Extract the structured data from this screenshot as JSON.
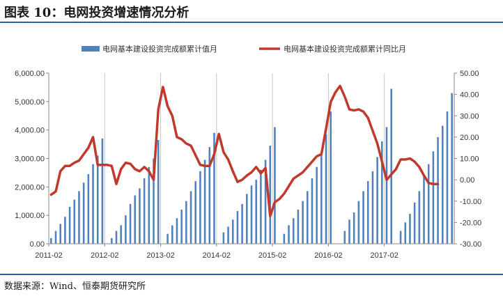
{
  "figure_title": "图表 10：电网投资增速情况分析",
  "source": "数据来源：Wind、恒泰期货研究所",
  "colors": {
    "bar": "#4f81bd",
    "line": "#c0392b",
    "rule": "#2b5fae",
    "grid": "#c8c8c8",
    "axis": "#8a8a8a",
    "text": "#333333"
  },
  "chart_data": {
    "type": "bar",
    "title": "",
    "x_tick_labels": [
      "2011-02",
      "2012-02",
      "2013-02",
      "2014-02",
      "2015-02",
      "2016-02",
      "2017-02"
    ],
    "x_tick_indices": [
      0,
      12,
      24,
      36,
      48,
      60,
      72
    ],
    "left_axis": {
      "min": 0,
      "max": 6000,
      "step": 1000,
      "tick_labels": [
        "0.00",
        "1,000.00",
        "2,000.00",
        "3,000.00",
        "4,000.00",
        "5,000.00",
        "6,000.00"
      ]
    },
    "right_axis": {
      "min": -30,
      "max": 50,
      "step": 10,
      "tick_labels": [
        "-30.00",
        "-20.00",
        "-10.00",
        "0.00",
        "10.00",
        "20.00",
        "30.00",
        "40.00",
        "50.00"
      ]
    },
    "grid": "vertical",
    "legend_position": "top",
    "series": [
      {
        "name": "电网基本建设投资完成额累计值月",
        "type": "bar",
        "axis": "left",
        "values": [
          200,
          450,
          700,
          950,
          1300,
          1550,
          1850,
          2150,
          2450,
          2800,
          3100,
          3700,
          null,
          200,
          450,
          650,
          1000,
          1400,
          1700,
          1950,
          2300,
          2700,
          3000,
          3650,
          null,
          350,
          650,
          900,
          1200,
          1500,
          1850,
          2200,
          2550,
          2950,
          3400,
          3900,
          null,
          400,
          600,
          850,
          1150,
          1400,
          1750,
          2050,
          2250,
          2600,
          2950,
          3450,
          4100,
          null,
          350,
          650,
          900,
          1200,
          1500,
          1850,
          2300,
          2700,
          3200,
          3850,
          4650,
          null,
          null,
          450,
          850,
          1100,
          1500,
          1850,
          2200,
          2550,
          3050,
          3600,
          4100,
          5450,
          null,
          450,
          750,
          1050,
          1450,
          1850,
          2400,
          2800,
          3250,
          3750,
          4150,
          4650,
          5300
        ]
      },
      {
        "name": "电网基本建设投资完成额累计同比月",
        "type": "line",
        "axis": "right",
        "values": [
          -7,
          -5.5,
          4,
          6.5,
          6.5,
          8,
          9,
          12,
          15,
          20,
          7,
          7,
          7,
          6.5,
          -2,
          5,
          8,
          7.5,
          5,
          4,
          6,
          4,
          0,
          33,
          43.5,
          34.5,
          30,
          20,
          19,
          17,
          16,
          11.5,
          7,
          6.5,
          6.5,
          12,
          21.5,
          13,
          9.5,
          4,
          -1,
          0,
          2,
          3.5,
          6,
          3,
          5.5,
          -17,
          -10.5,
          -9,
          -6.5,
          -3,
          0.5,
          2,
          3.5,
          6,
          8.5,
          11,
          12,
          24,
          36.5,
          41,
          44,
          39,
          33,
          32.5,
          33,
          32,
          29,
          23,
          17,
          8.5,
          0,
          2.5,
          5,
          9.5,
          9.5,
          10,
          8.5,
          6,
          2,
          -1.5,
          -2,
          -2
        ]
      }
    ]
  }
}
